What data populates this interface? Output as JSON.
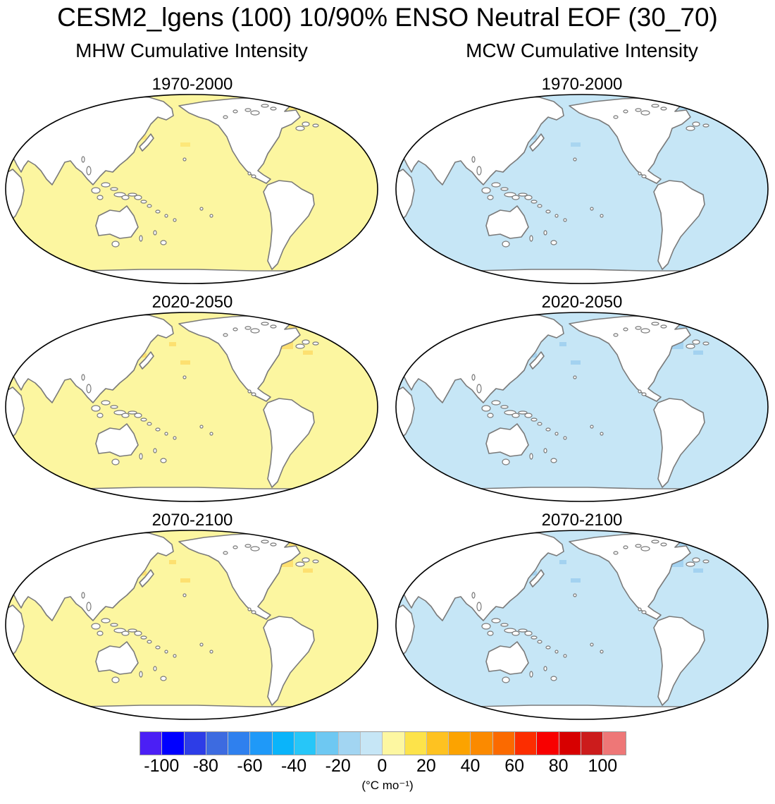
{
  "title": "CESM2_lgens (100) 10/90% ENSO Neutral EOF (30_70)",
  "columns": {
    "left": "MHW Cumulative Intensity",
    "right": "MCW Cumulative Intensity"
  },
  "periods": [
    "1970-2000",
    "2020-2050",
    "2070-2100"
  ],
  "panels": [
    {
      "label": "1970-2000",
      "col": "MHW",
      "ocean_color": "#fcf6a0",
      "hot_color": "#fde87a"
    },
    {
      "label": "1970-2000",
      "col": "MCW",
      "ocean_color": "#c6e6f6",
      "hot_color": "#a9d6f0"
    },
    {
      "label": "2020-2050",
      "col": "MHW",
      "ocean_color": "#fcf6a0",
      "hot_color": "#fde070"
    },
    {
      "label": "2020-2050",
      "col": "MCW",
      "ocean_color": "#c6e6f6",
      "hot_color": "#a3d2f0"
    },
    {
      "label": "2070-2100",
      "col": "MHW",
      "ocean_color": "#fcf6a0",
      "hot_color": "#fde070"
    },
    {
      "label": "2070-2100",
      "col": "MCW",
      "ocean_color": "#c6e6f6",
      "hot_color": "#a3d2f0"
    }
  ],
  "colorbar": {
    "colors": [
      "#4b1ff5",
      "#0000ff",
      "#2d3de7",
      "#3d6be0",
      "#2f80ee",
      "#1f99f8",
      "#0ab4fa",
      "#27c6f8",
      "#6ec8f2",
      "#a2d5f2",
      "#c6e6f6",
      "#fdf7a1",
      "#fde34a",
      "#fec221",
      "#fca300",
      "#fb8a00",
      "#fb6a00",
      "#fc2d00",
      "#f80000",
      "#d70000",
      "#cc1c1c",
      "#ee7777"
    ],
    "ticks": [
      "-100",
      "-80",
      "-60",
      "-40",
      "-20",
      "0",
      "20",
      "40",
      "60",
      "80",
      "100"
    ],
    "units": "(°C mo⁻¹)"
  }
}
